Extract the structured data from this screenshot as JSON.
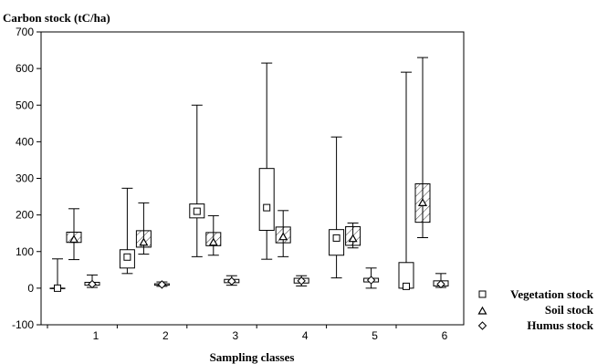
{
  "chart_data": {
    "type": "box",
    "ylabel": "Carbon stock (tC/ha)",
    "xlabel": "Sampling classes",
    "ylim": [
      -100,
      700
    ],
    "yticks": [
      -100,
      0,
      100,
      200,
      300,
      400,
      500,
      600,
      700
    ],
    "categories": [
      "1",
      "2",
      "3",
      "4",
      "5",
      "6"
    ],
    "legend_position": "bottom-right",
    "series": [
      {
        "name": "Vegetation stock",
        "marker": "square",
        "hatched": false,
        "boxes": [
          {
            "min": 0,
            "q1": 0,
            "median": 0,
            "q3": 0,
            "max": 80
          },
          {
            "min": 40,
            "q1": 55,
            "median": 85,
            "q3": 105,
            "max": 273
          },
          {
            "min": 86,
            "q1": 192,
            "median": 210,
            "q3": 230,
            "max": 500
          },
          {
            "min": 79,
            "q1": 158,
            "median": 220,
            "q3": 327,
            "max": 615
          },
          {
            "min": 28,
            "q1": 90,
            "median": 137,
            "q3": 160,
            "max": 413
          },
          {
            "min": 0,
            "q1": 0,
            "median": 5,
            "q3": 70,
            "max": 590
          }
        ]
      },
      {
        "name": "Soil stock",
        "marker": "triangle",
        "hatched": true,
        "boxes": [
          {
            "min": 78,
            "q1": 125,
            "median": 133,
            "q3": 153,
            "max": 217
          },
          {
            "min": 93,
            "q1": 112,
            "median": 125,
            "q3": 157,
            "max": 233
          },
          {
            "min": 90,
            "q1": 116,
            "median": 125,
            "q3": 152,
            "max": 198
          },
          {
            "min": 86,
            "q1": 124,
            "median": 140,
            "q3": 167,
            "max": 212
          },
          {
            "min": 110,
            "q1": 117,
            "median": 135,
            "q3": 168,
            "max": 178
          },
          {
            "min": 138,
            "q1": 180,
            "median": 233,
            "q3": 285,
            "max": 630
          }
        ]
      },
      {
        "name": "Humus stock",
        "marker": "diamond",
        "hatched": false,
        "boxes": [
          {
            "min": 2,
            "q1": 8,
            "median": 11,
            "q3": 16,
            "max": 36
          },
          {
            "min": 5,
            "q1": 8,
            "median": 10,
            "q3": 12,
            "max": 17
          },
          {
            "min": 8,
            "q1": 15,
            "median": 19,
            "q3": 24,
            "max": 34
          },
          {
            "min": 6,
            "q1": 14,
            "median": 20,
            "q3": 27,
            "max": 34
          },
          {
            "min": 0,
            "q1": 17,
            "median": 22,
            "q3": 27,
            "max": 55
          },
          {
            "min": 2,
            "q1": 6,
            "median": 11,
            "q3": 20,
            "max": 40
          }
        ]
      }
    ]
  }
}
